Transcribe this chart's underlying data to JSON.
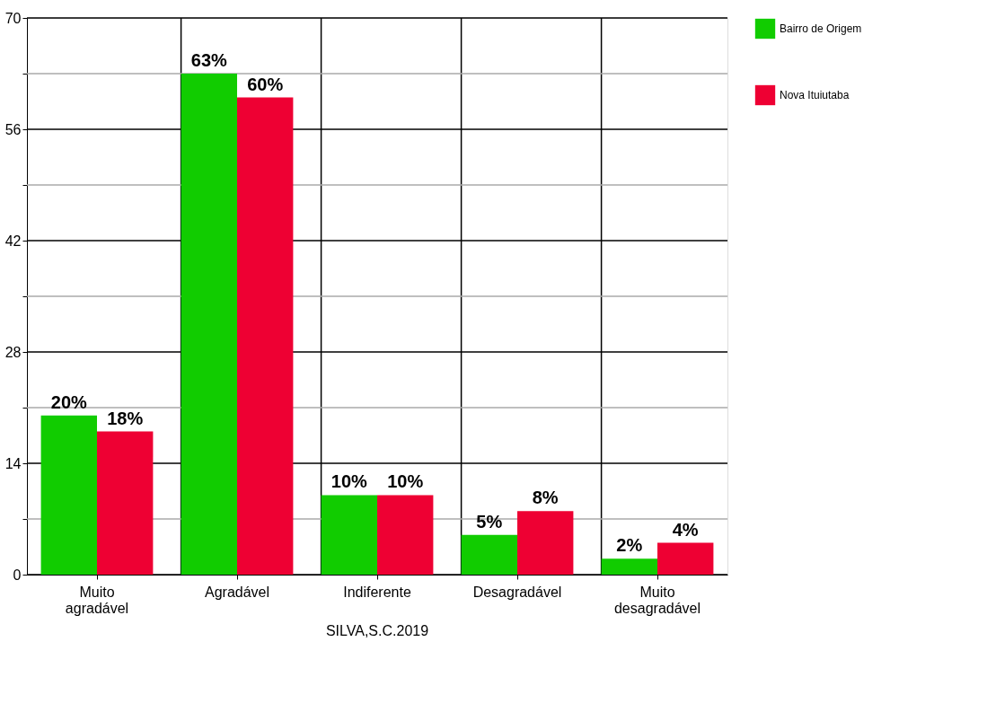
{
  "chart_data": {
    "type": "bar",
    "categories": [
      "Muito agradável",
      "Agradável",
      "Indiferente",
      "Desagradável",
      "Muito desagradável"
    ],
    "series": [
      {
        "name": "Bairro de Origem",
        "color": "#11cc00",
        "values": [
          20,
          63,
          10,
          5,
          2
        ],
        "value_labels": [
          "20%",
          "63%",
          "10%",
          "5%",
          "2%"
        ]
      },
      {
        "name": "Nova Ituiutaba",
        "color": "#ee0033",
        "values": [
          18,
          60,
          10,
          8,
          4
        ],
        "value_labels": [
          "18%",
          "60%",
          "10%",
          "8%",
          "4%"
        ]
      }
    ],
    "ylim": [
      0,
      70
    ],
    "yticks": [
      0,
      {
        "value": 7,
        "label": null
      },
      14,
      {
        "value": 21,
        "label": null
      },
      28,
      {
        "value": 35,
        "label": null
      },
      42,
      {
        "value": 49,
        "label": null
      },
      56,
      {
        "value": 63,
        "label": null
      },
      70
    ],
    "grid": true,
    "legend": "right",
    "annotations": [
      "SILVA,S.C.2019"
    ]
  }
}
